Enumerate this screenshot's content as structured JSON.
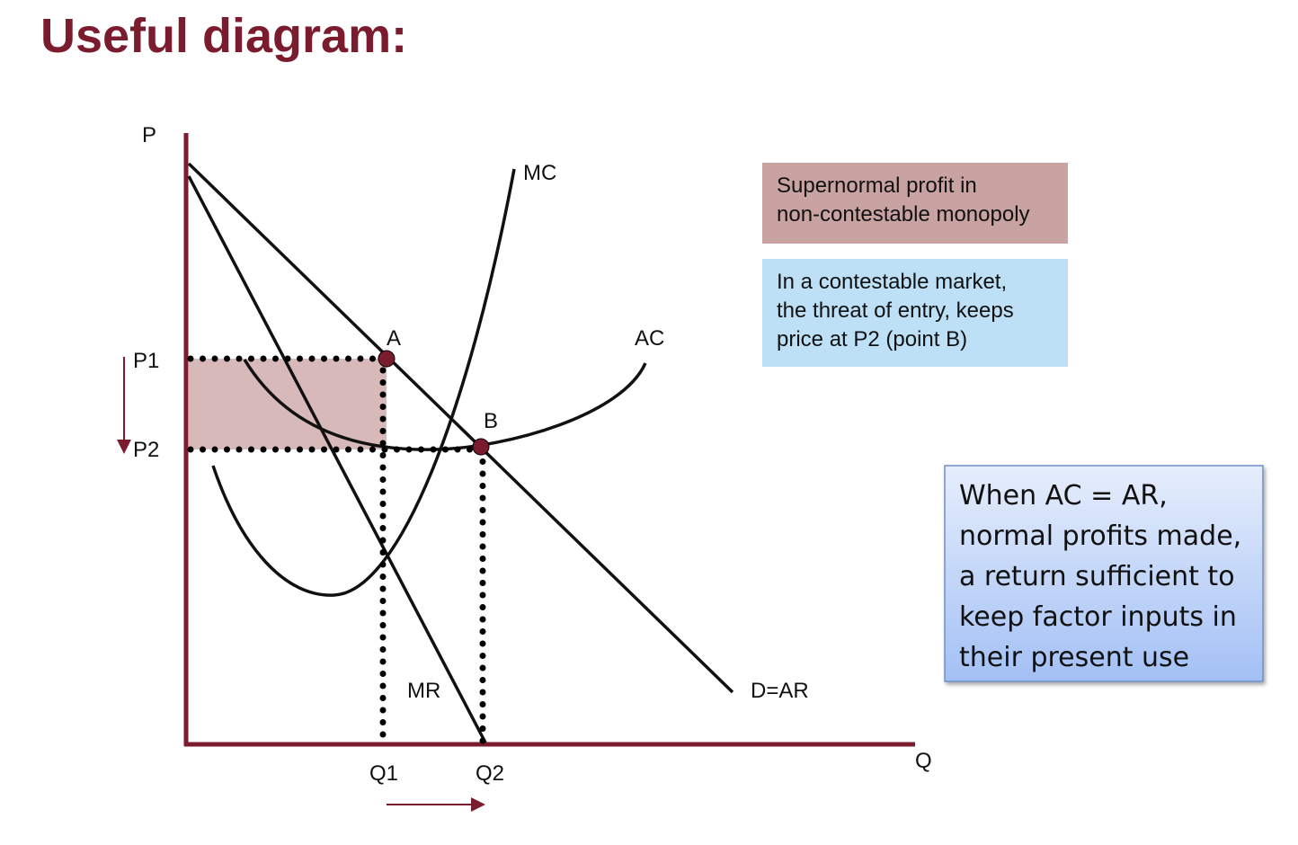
{
  "header": {
    "title": "Useful diagram:"
  },
  "diagram": {
    "axes": {
      "y_label": "P",
      "x_label": "Q"
    },
    "curves": {
      "mc": "MC",
      "ac": "AC",
      "mr": "MR",
      "demand": "D=AR"
    },
    "points": {
      "a": "A",
      "b": "B"
    },
    "prices": {
      "p1": "P1",
      "p2": "P2"
    },
    "quantities": {
      "q1": "Q1",
      "q2": "Q2"
    }
  },
  "notes": {
    "supernormal": [
      "Supernormal profit in",
      "non-contestable monopoly"
    ],
    "contestable": [
      "In a contestable market,",
      "the threat of entry, keeps",
      "price at P2 (point B)"
    ],
    "normal_profit": [
      "When AC = AR,",
      "normal profits made,",
      "a return sufficient to",
      "keep factor inputs in",
      "their present use"
    ]
  }
}
